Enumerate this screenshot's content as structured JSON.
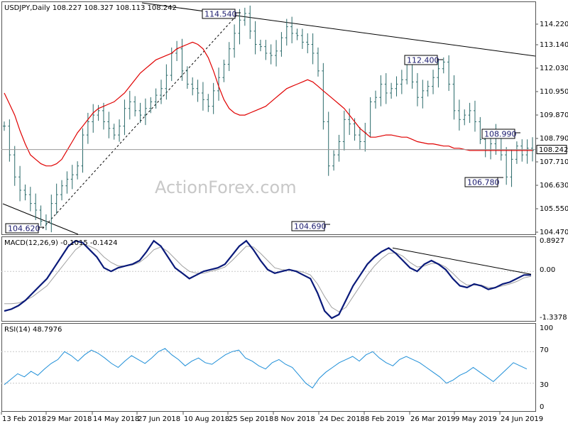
{
  "header": {
    "symbol_line": "USDJPY,Daily  108.227 108.327 108.113 108.242"
  },
  "watermark": "ActionForex.com",
  "colors": {
    "bars": "#2a6a6a",
    "ma": "#e00000",
    "trend": "#000000",
    "macd_main": "#0a1a7a",
    "macd_signal": "#a0a0a0",
    "rsi": "#1f8fd8",
    "grid": "#c8c8c8"
  },
  "chart_data": [
    {
      "type": "line",
      "panel": "price",
      "title": "USDJPY,Daily  108.227 108.327 108.113 108.242",
      "x_labels": [
        "13 Feb 2018",
        "29 Mar 2018",
        "14 May 2018",
        "27 Jun 2018",
        "10 Aug 2018",
        "25 Sep 2018",
        "8 Nov 2018",
        "24 Dec 2018",
        "8 Feb 2019",
        "26 Mar 2019",
        "9 May 2019",
        "24 Jun 2019"
      ],
      "y_ticks": [
        "114.220",
        "113.140",
        "112.030",
        "110.950",
        "109.870",
        "108.790",
        "107.710",
        "106.630",
        "105.550",
        "104.470"
      ],
      "ylim": [
        104.47,
        114.88
      ],
      "current_price": "108.242",
      "series": [
        {
          "kind": "close",
          "values": [
            109.3,
            108.0,
            107.0,
            106.4,
            106.2,
            105.8,
            105.5,
            105.0,
            104.9,
            105.8,
            106.2,
            106.6,
            106.9,
            107.1,
            107.5,
            108.9,
            109.5,
            109.8,
            110.0,
            109.5,
            109.2,
            108.9,
            109.3,
            110.1,
            110.4,
            110.0,
            109.8,
            110.1,
            110.4,
            110.7,
            111.0,
            111.6,
            112.6,
            112.8,
            111.8,
            111.2,
            111.0,
            110.8,
            110.5,
            110.2,
            110.9,
            111.5,
            112.1,
            112.8,
            113.5,
            114.1,
            114.4,
            113.6,
            113.0,
            112.9,
            112.6,
            112.5,
            112.7,
            113.3,
            113.8,
            113.5,
            113.4,
            113.1,
            113.0,
            112.6,
            111.8,
            109.5,
            107.5,
            108.0,
            108.6,
            109.6,
            109.4,
            108.9,
            108.6,
            109.0,
            110.4,
            110.6,
            111.2,
            110.8,
            111.0,
            111.2,
            111.4,
            112.1,
            111.3,
            110.6,
            110.9,
            111.1,
            111.5,
            111.9,
            112.2,
            111.2,
            110.0,
            109.6,
            109.8,
            110.0,
            109.5,
            108.7,
            108.2,
            108.5,
            108.9,
            108.0,
            107.0,
            107.8,
            108.4,
            108.0,
            108.3,
            108.2
          ]
        },
        {
          "kind": "moving_average",
          "values": [
            110.8,
            110.3,
            109.8,
            109.1,
            108.5,
            108.0,
            107.8,
            107.6,
            107.5,
            107.5,
            107.6,
            107.8,
            108.2,
            108.6,
            109.0,
            109.3,
            109.6,
            109.9,
            110.1,
            110.2,
            110.3,
            110.4,
            110.6,
            110.8,
            111.1,
            111.4,
            111.7,
            111.9,
            112.1,
            112.3,
            112.4,
            112.5,
            112.6,
            112.8,
            112.9,
            113.0,
            113.1,
            113.0,
            112.8,
            112.4,
            111.8,
            111.1,
            110.5,
            110.1,
            109.9,
            109.8,
            109.8,
            109.9,
            110.0,
            110.1,
            110.2,
            110.4,
            110.6,
            110.8,
            111.0,
            111.1,
            111.2,
            111.3,
            111.4,
            111.3,
            111.1,
            110.9,
            110.7,
            110.5,
            110.3,
            110.1,
            109.8,
            109.5,
            109.2,
            109.0,
            108.8,
            108.8,
            108.85,
            108.9,
            108.9,
            108.85,
            108.8,
            108.8,
            108.7,
            108.6,
            108.55,
            108.5,
            108.5,
            108.45,
            108.4,
            108.4,
            108.3,
            108.3,
            108.25,
            108.2,
            108.2,
            108.2,
            108.2,
            108.2,
            108.2,
            108.2,
            108.2,
            108.2,
            108.2,
            108.2,
            108.2,
            108.2
          ]
        }
      ],
      "annotations": [
        {
          "text": "114.540",
          "value": 114.54
        },
        {
          "text": "112.400",
          "value": 112.4
        },
        {
          "text": "108.990",
          "value": 108.99
        },
        {
          "text": "106.780",
          "value": 106.78
        },
        {
          "text": "104.690",
          "value": 104.69
        },
        {
          "text": "104.620",
          "value": 104.62
        }
      ]
    },
    {
      "type": "line",
      "panel": "macd",
      "title": "MACD(12,26,9) -0.1015 -0.1424",
      "y_ticks": [
        "0.8927",
        "0.00",
        "-1.3378"
      ],
      "ylim": [
        -1.3378,
        0.8927
      ],
      "series": [
        {
          "kind": "macd",
          "values": [
            -1.1,
            -1.05,
            -0.95,
            -0.8,
            -0.6,
            -0.4,
            -0.2,
            0.1,
            0.4,
            0.7,
            0.85,
            0.8,
            0.6,
            0.4,
            0.1,
            0.0,
            0.1,
            0.15,
            0.2,
            0.3,
            0.55,
            0.85,
            0.7,
            0.4,
            0.1,
            -0.05,
            -0.2,
            -0.1,
            0.0,
            0.05,
            0.1,
            0.2,
            0.45,
            0.7,
            0.85,
            0.6,
            0.3,
            0.05,
            -0.05,
            0.0,
            0.05,
            0.0,
            -0.1,
            -0.2,
            -0.6,
            -1.1,
            -1.3,
            -1.2,
            -0.8,
            -0.4,
            -0.1,
            0.2,
            0.4,
            0.55,
            0.65,
            0.5,
            0.3,
            0.1,
            0.0,
            0.2,
            0.3,
            0.2,
            0.05,
            -0.2,
            -0.4,
            -0.45,
            -0.35,
            -0.4,
            -0.5,
            -0.45,
            -0.35,
            -0.3,
            -0.2,
            -0.1,
            -0.1
          ]
        },
        {
          "kind": "signal",
          "values": [
            -0.9,
            -0.9,
            -0.88,
            -0.8,
            -0.7,
            -0.55,
            -0.4,
            -0.15,
            0.1,
            0.35,
            0.6,
            0.75,
            0.7,
            0.6,
            0.4,
            0.25,
            0.15,
            0.15,
            0.18,
            0.25,
            0.4,
            0.6,
            0.68,
            0.55,
            0.35,
            0.15,
            0.0,
            -0.05,
            -0.05,
            0.0,
            0.05,
            0.12,
            0.3,
            0.5,
            0.7,
            0.68,
            0.5,
            0.3,
            0.1,
            0.05,
            0.03,
            0.02,
            -0.02,
            -0.1,
            -0.35,
            -0.7,
            -1.0,
            -1.12,
            -1.0,
            -0.7,
            -0.4,
            -0.1,
            0.15,
            0.35,
            0.5,
            0.52,
            0.42,
            0.25,
            0.12,
            0.15,
            0.22,
            0.22,
            0.12,
            -0.05,
            -0.25,
            -0.38,
            -0.38,
            -0.38,
            -0.45,
            -0.45,
            -0.4,
            -0.35,
            -0.28,
            -0.18,
            -0.14
          ]
        }
      ],
      "trendline": [
        0.65,
        -0.08
      ]
    },
    {
      "type": "line",
      "panel": "rsi",
      "title": "RSI(14) 48.7976",
      "y_ticks": [
        "100",
        "70",
        "30",
        "0"
      ],
      "ylim": [
        0,
        100
      ],
      "levels": [
        70,
        30
      ],
      "series": [
        {
          "kind": "rsi",
          "values": [
            28,
            35,
            42,
            38,
            45,
            40,
            48,
            55,
            60,
            70,
            65,
            58,
            66,
            72,
            68,
            62,
            55,
            50,
            58,
            65,
            60,
            55,
            62,
            70,
            74,
            66,
            60,
            52,
            58,
            62,
            56,
            54,
            60,
            66,
            70,
            72,
            62,
            58,
            52,
            48,
            56,
            60,
            54,
            50,
            40,
            30,
            24,
            36,
            44,
            50,
            56,
            60,
            64,
            58,
            66,
            70,
            62,
            56,
            52,
            60,
            64,
            60,
            56,
            50,
            44,
            38,
            30,
            34,
            40,
            44,
            50,
            44,
            38,
            32,
            40,
            48,
            56,
            52,
            48
          ]
        }
      ]
    }
  ]
}
